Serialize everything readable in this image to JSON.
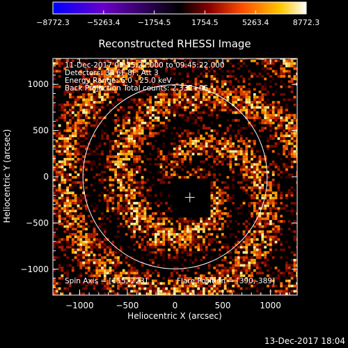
{
  "chart_data": {
    "type": "heatmap",
    "title": "Reconstructed RHESSI Image",
    "xlabel": "Heliocentric X (arcsec)",
    "ylabel": "Heliocentric Y (arcsec)",
    "xlim": [
      -1280,
      1280
    ],
    "ylim": [
      -1280,
      1280
    ],
    "x_ticks": [
      -1000,
      -500,
      0,
      500,
      1000
    ],
    "y_ticks": [
      -1000,
      -500,
      0,
      500,
      1000
    ],
    "x_tick_labels": [
      "−1000",
      "−500",
      "0",
      "500",
      "1000"
    ],
    "y_tick_labels": [
      "−1000",
      "−500",
      "0",
      "500",
      "1000"
    ],
    "colorbar": {
      "range": [
        -8772.3,
        8772.3
      ],
      "ticks": [
        -8772.3,
        -5263.4,
        -1754.5,
        1754.5,
        5263.4,
        8772.3
      ],
      "tick_labels": [
        "−8772.3",
        "−5263.4",
        "−1754.5",
        "1754.5",
        "5263.4",
        "8772.3"
      ],
      "colors": [
        "#0000ff",
        "#6a00c8",
        "#000000",
        "#8c0000",
        "#ff5000",
        "#ffc800",
        "#ffffff"
      ]
    },
    "annotations": {
      "time_range": "11-Dec-2017 09:35:22.000 to 09:45:22.000",
      "detectors": "Detectors: 3F 6F 8F, Att 3",
      "energy": "Energy Range: 6.0 - 25.0 keV",
      "method": "Back Projection   Total counts: 2.33E+06",
      "spin_axis": "Spin Axis = [155,-223]",
      "flare_position": "Flare Position = [390,-389]"
    },
    "solar_disk_radius_arcsec": 965,
    "center_cross": [
      155,
      -223
    ],
    "dark_box": {
      "x": [
        -30,
        370
      ],
      "y": [
        -440,
        -20
      ]
    },
    "grid": false
  },
  "footer": {
    "timestamp": "13-Dec-2017 18:04"
  }
}
